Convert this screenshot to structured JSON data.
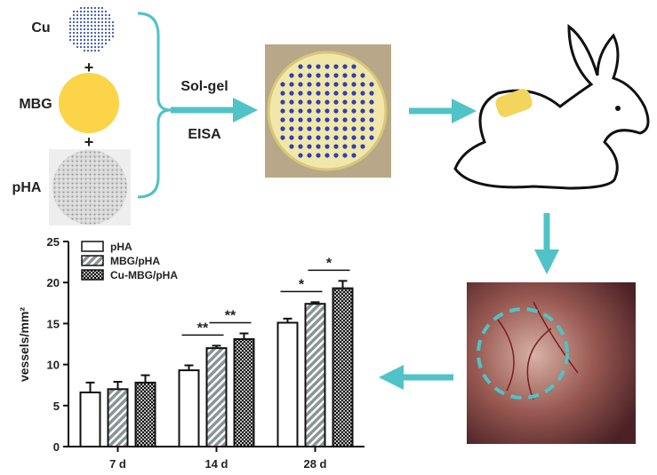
{
  "scheme": {
    "cu": "Cu",
    "mbg": "MBG",
    "pha": "pHA",
    "plus": "+",
    "sol_gel": "Sol-gel",
    "eisa": "EISA"
  },
  "chart_data": {
    "type": "bar",
    "y_label": "vessels/mm²",
    "categories": [
      "7 d",
      "14 d",
      "28 d"
    ],
    "series": [
      {
        "name": "pHA",
        "color": "#ffffff",
        "pattern": "solid",
        "values": [
          6.6,
          9.3,
          15.1
        ],
        "errors": [
          1.2,
          0.6,
          0.5
        ]
      },
      {
        "name": "MBG/pHA",
        "color": "#8a9396",
        "pattern": "stripes",
        "values": [
          7.0,
          12.0,
          17.4
        ],
        "errors": [
          0.9,
          0.3,
          0.2
        ]
      },
      {
        "name": "Cu-MBG/pHA",
        "color": "#111111",
        "pattern": "checker",
        "values": [
          7.8,
          13.1,
          19.3
        ],
        "errors": [
          0.9,
          0.7,
          0.9
        ]
      }
    ],
    "ylim": [
      0,
      25
    ],
    "yticks": [
      0,
      5,
      10,
      15,
      20,
      25
    ],
    "legend": "top-left",
    "annotations": [
      "**",
      "**",
      "*",
      "*"
    ]
  }
}
